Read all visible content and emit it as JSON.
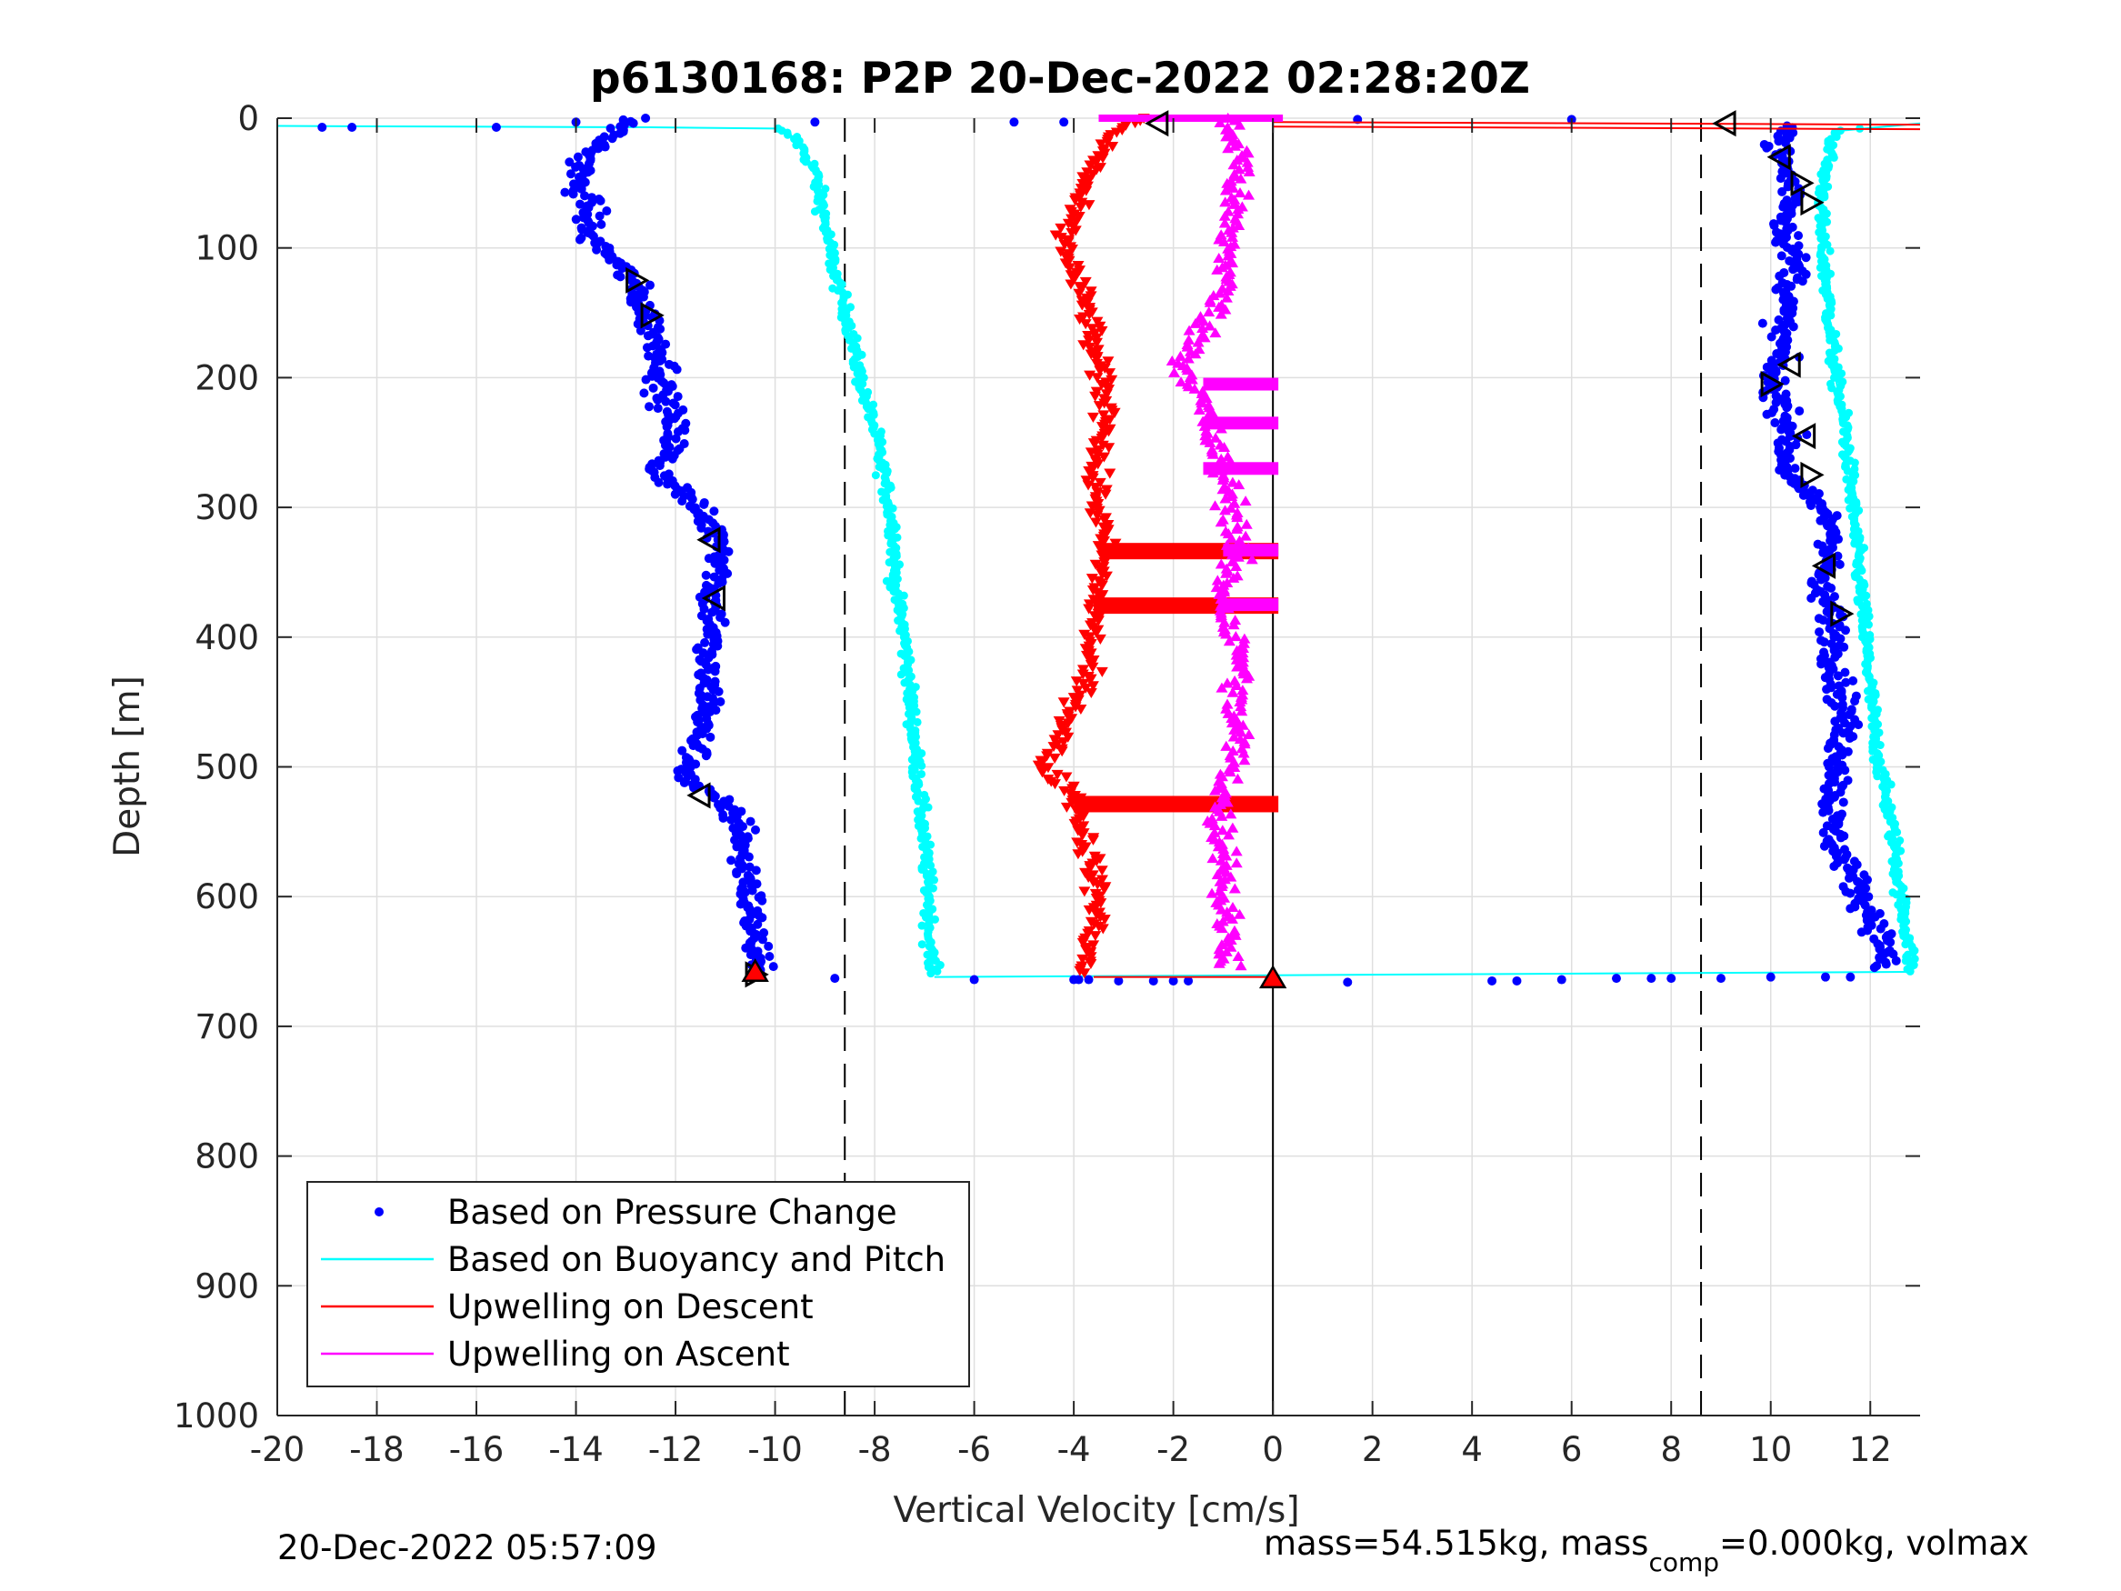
{
  "chart_data": {
    "type": "scatter",
    "title": "p6130168: P2P 20-Dec-2022 02:28:20Z",
    "xlabel": "Vertical Velocity [cm/s]",
    "ylabel": "Depth [m]",
    "xlim": [
      -20,
      13
    ],
    "ylim": [
      0,
      1000
    ],
    "y_reversed": true,
    "grid": true,
    "x_ticks": [
      "-20",
      "-18",
      "-16",
      "-14",
      "-12",
      "-10",
      "-8",
      "-6",
      "-4",
      "-2",
      "0",
      "2",
      "4",
      "6",
      "8",
      "10",
      "12"
    ],
    "y_ticks": [
      "0",
      "100",
      "200",
      "300",
      "400",
      "500",
      "600",
      "700",
      "800",
      "900",
      "1000"
    ],
    "reference_lines": [
      {
        "x": -8.6,
        "style": "dashed",
        "color": "#000000"
      },
      {
        "x": 8.6,
        "style": "dashed",
        "color": "#000000"
      },
      {
        "x": 0,
        "style": "solid",
        "color": "#000000"
      }
    ],
    "legend_position": "bottom-left",
    "series": [
      {
        "name": "Based on Pressure Change",
        "color": "#0000ff",
        "marker": "dot",
        "descent_profile": [
          [
            0,
            -12.8
          ],
          [
            10,
            -13.2
          ],
          [
            30,
            -13.8
          ],
          [
            50,
            -14.0
          ],
          [
            70,
            -13.7
          ],
          [
            90,
            -13.8
          ],
          [
            110,
            -13.2
          ],
          [
            130,
            -12.8
          ],
          [
            150,
            -12.6
          ],
          [
            170,
            -12.4
          ],
          [
            190,
            -12.2
          ],
          [
            210,
            -12.3
          ],
          [
            230,
            -12.1
          ],
          [
            250,
            -12.0
          ],
          [
            270,
            -12.4
          ],
          [
            290,
            -11.8
          ],
          [
            310,
            -11.4
          ],
          [
            330,
            -11.0
          ],
          [
            350,
            -11.1
          ],
          [
            370,
            -11.3
          ],
          [
            390,
            -11.2
          ],
          [
            410,
            -11.4
          ],
          [
            430,
            -11.4
          ],
          [
            450,
            -11.3
          ],
          [
            470,
            -11.5
          ],
          [
            490,
            -11.6
          ],
          [
            510,
            -11.8
          ],
          [
            530,
            -11.0
          ],
          [
            550,
            -10.6
          ],
          [
            570,
            -10.7
          ],
          [
            590,
            -10.5
          ],
          [
            610,
            -10.5
          ],
          [
            630,
            -10.4
          ],
          [
            650,
            -10.4
          ],
          [
            658,
            -10.4
          ]
        ],
        "ascent_profile": [
          [
            655,
            12.2
          ],
          [
            640,
            12.3
          ],
          [
            620,
            12.1
          ],
          [
            600,
            11.8
          ],
          [
            580,
            11.6
          ],
          [
            560,
            11.3
          ],
          [
            540,
            11.2
          ],
          [
            520,
            11.3
          ],
          [
            500,
            11.4
          ],
          [
            480,
            11.4
          ],
          [
            460,
            11.5
          ],
          [
            440,
            11.4
          ],
          [
            420,
            11.3
          ],
          [
            400,
            11.3
          ],
          [
            380,
            11.2
          ],
          [
            360,
            10.9
          ],
          [
            340,
            11.2
          ],
          [
            320,
            11.3
          ],
          [
            300,
            11.0
          ],
          [
            280,
            10.4
          ],
          [
            260,
            10.3
          ],
          [
            240,
            10.4
          ],
          [
            220,
            10.2
          ],
          [
            200,
            10.0
          ],
          [
            180,
            10.2
          ],
          [
            160,
            10.2
          ],
          [
            140,
            10.3
          ],
          [
            120,
            10.5
          ],
          [
            100,
            10.4
          ],
          [
            80,
            10.3
          ],
          [
            60,
            10.5
          ],
          [
            40,
            10.3
          ],
          [
            20,
            10.1
          ],
          [
            6,
            10.6
          ]
        ],
        "outliers": [
          [
            7,
            -19.1
          ],
          [
            7,
            -18.5
          ],
          [
            7,
            -15.6
          ],
          [
            3,
            -14.0
          ],
          [
            3,
            -9.2
          ],
          [
            3,
            -5.2
          ],
          [
            3,
            -4.2
          ],
          [
            1,
            1.7
          ],
          [
            1,
            6.0
          ],
          [
            663,
            -8.8
          ],
          [
            664,
            -6.0
          ],
          [
            664,
            -4.0
          ],
          [
            664,
            -3.9
          ],
          [
            664,
            -3.7
          ],
          [
            665,
            -3.1
          ],
          [
            665,
            -2.4
          ],
          [
            665,
            -2.0
          ],
          [
            665,
            -1.7
          ],
          [
            666,
            1.5
          ],
          [
            665,
            4.4
          ],
          [
            665,
            4.9
          ],
          [
            664,
            5.8
          ],
          [
            663,
            6.9
          ],
          [
            663,
            7.6
          ],
          [
            663,
            8.0
          ],
          [
            663,
            9.0
          ],
          [
            662,
            10.0
          ],
          [
            662,
            11.1
          ],
          [
            662,
            11.6
          ]
        ]
      },
      {
        "name": "Based on Buoyancy and Pitch",
        "color": "#00ffff",
        "marker": "dot-line",
        "descent_profile": [
          [
            6,
            -20.0
          ],
          [
            7,
            -12.5
          ],
          [
            8,
            -10.0
          ],
          [
            15,
            -9.6
          ],
          [
            40,
            -9.2
          ],
          [
            80,
            -9.0
          ],
          [
            120,
            -8.8
          ],
          [
            160,
            -8.5
          ],
          [
            200,
            -8.3
          ],
          [
            240,
            -8.0
          ],
          [
            280,
            -7.8
          ],
          [
            320,
            -7.6
          ],
          [
            360,
            -7.6
          ],
          [
            400,
            -7.4
          ],
          [
            440,
            -7.3
          ],
          [
            480,
            -7.2
          ],
          [
            520,
            -7.1
          ],
          [
            560,
            -7.0
          ],
          [
            600,
            -6.9
          ],
          [
            640,
            -6.9
          ],
          [
            660,
            -6.8
          ]
        ],
        "ascent_profile": [
          [
            658,
            12.8
          ],
          [
            640,
            12.8
          ],
          [
            600,
            12.6
          ],
          [
            560,
            12.5
          ],
          [
            520,
            12.3
          ],
          [
            480,
            12.1
          ],
          [
            440,
            12.0
          ],
          [
            400,
            11.9
          ],
          [
            360,
            11.8
          ],
          [
            320,
            11.7
          ],
          [
            280,
            11.6
          ],
          [
            240,
            11.5
          ],
          [
            200,
            11.3
          ],
          [
            160,
            11.2
          ],
          [
            120,
            11.1
          ],
          [
            80,
            11.0
          ],
          [
            40,
            11.1
          ],
          [
            10,
            11.3
          ],
          [
            4,
            13.0
          ]
        ]
      },
      {
        "name": "Upwelling on Descent",
        "color": "#ff0000",
        "marker": "triangle-down",
        "profile": [
          [
            0,
            -2.6
          ],
          [
            10,
            -3.2
          ],
          [
            30,
            -3.5
          ],
          [
            60,
            -3.9
          ],
          [
            90,
            -4.2
          ],
          [
            120,
            -4.0
          ],
          [
            150,
            -3.7
          ],
          [
            180,
            -3.6
          ],
          [
            210,
            -3.4
          ],
          [
            240,
            -3.3
          ],
          [
            270,
            -3.6
          ],
          [
            300,
            -3.5
          ],
          [
            330,
            -3.4
          ],
          [
            360,
            -3.5
          ],
          [
            390,
            -3.6
          ],
          [
            420,
            -3.7
          ],
          [
            450,
            -3.9
          ],
          [
            480,
            -4.3
          ],
          [
            500,
            -4.6
          ],
          [
            520,
            -4.0
          ],
          [
            550,
            -3.8
          ],
          [
            580,
            -3.6
          ],
          [
            610,
            -3.5
          ],
          [
            640,
            -3.7
          ],
          [
            660,
            -3.8
          ]
        ],
        "horizontal_bands": [
          [
            333,
            -3.4,
            0.0
          ],
          [
            375,
            -3.6,
            0.0
          ],
          [
            528,
            -4.0,
            0.0
          ]
        ],
        "surface_line": [
          [
            3,
            0.0
          ],
          [
            5,
            13.0
          ]
        ]
      },
      {
        "name": "Upwelling on Ascent",
        "color": "#ff00ff",
        "marker": "triangle-up",
        "profile": [
          [
            0,
            -1.0
          ],
          [
            30,
            -0.6
          ],
          [
            60,
            -0.8
          ],
          [
            90,
            -0.9
          ],
          [
            120,
            -0.9
          ],
          [
            150,
            -1.2
          ],
          [
            170,
            -1.5
          ],
          [
            190,
            -1.8
          ],
          [
            210,
            -1.5
          ],
          [
            240,
            -1.3
          ],
          [
            270,
            -1.0
          ],
          [
            300,
            -0.8
          ],
          [
            330,
            -0.7
          ],
          [
            360,
            -1.0
          ],
          [
            390,
            -0.9
          ],
          [
            420,
            -0.6
          ],
          [
            450,
            -0.8
          ],
          [
            480,
            -0.7
          ],
          [
            510,
            -0.9
          ],
          [
            540,
            -1.1
          ],
          [
            570,
            -0.9
          ],
          [
            600,
            -1.0
          ],
          [
            630,
            -0.9
          ],
          [
            655,
            -0.8
          ]
        ],
        "horizontal_bands": [
          [
            205,
            -1.4,
            0.0
          ],
          [
            235,
            -1.4,
            0.0
          ],
          [
            270,
            -1.4,
            0.0
          ],
          [
            333,
            -1.0,
            0.0
          ],
          [
            375,
            -1.0,
            0.0
          ]
        ]
      }
    ],
    "markers": [
      {
        "depth": 4,
        "x": -2.3,
        "shape": "triangle-left"
      },
      {
        "depth": 4,
        "x": 9.1,
        "shape": "triangle-left"
      },
      {
        "depth": 125,
        "x": -12.8,
        "shape": "triangle-right"
      },
      {
        "depth": 152,
        "x": -12.5,
        "shape": "triangle-right"
      },
      {
        "depth": 325,
        "x": -11.3,
        "shape": "triangle-left"
      },
      {
        "depth": 370,
        "x": -11.2,
        "shape": "triangle-left"
      },
      {
        "depth": 522,
        "x": -11.5,
        "shape": "triangle-left"
      },
      {
        "depth": 660,
        "x": -10.4,
        "shape": "triangle-right"
      },
      {
        "depth": 30,
        "x": 10.2,
        "shape": "triangle-left"
      },
      {
        "depth": 50,
        "x": 10.6,
        "shape": "triangle-right"
      },
      {
        "depth": 65,
        "x": 10.8,
        "shape": "triangle-right"
      },
      {
        "depth": 190,
        "x": 10.4,
        "shape": "triangle-left"
      },
      {
        "depth": 205,
        "x": 10.0,
        "shape": "triangle-right"
      },
      {
        "depth": 245,
        "x": 10.7,
        "shape": "triangle-left"
      },
      {
        "depth": 275,
        "x": 10.8,
        "shape": "triangle-right"
      },
      {
        "depth": 345,
        "x": 11.1,
        "shape": "triangle-left"
      },
      {
        "depth": 382,
        "x": 11.4,
        "shape": "triangle-right"
      }
    ],
    "bottom_markers": [
      {
        "depth": 658,
        "x": -10.4,
        "shape": "triangle-up",
        "color": "#ff0000"
      },
      {
        "depth": 663,
        "x": 0.0,
        "shape": "triangle-up",
        "color": "#ff0000"
      }
    ],
    "footer_left": "20-Dec-2022 05:57:09",
    "footer_right_main": "mass=54.515kg, mass",
    "footer_right_sub": "comp",
    "footer_right_tail": "=0.000kg, volmax"
  }
}
